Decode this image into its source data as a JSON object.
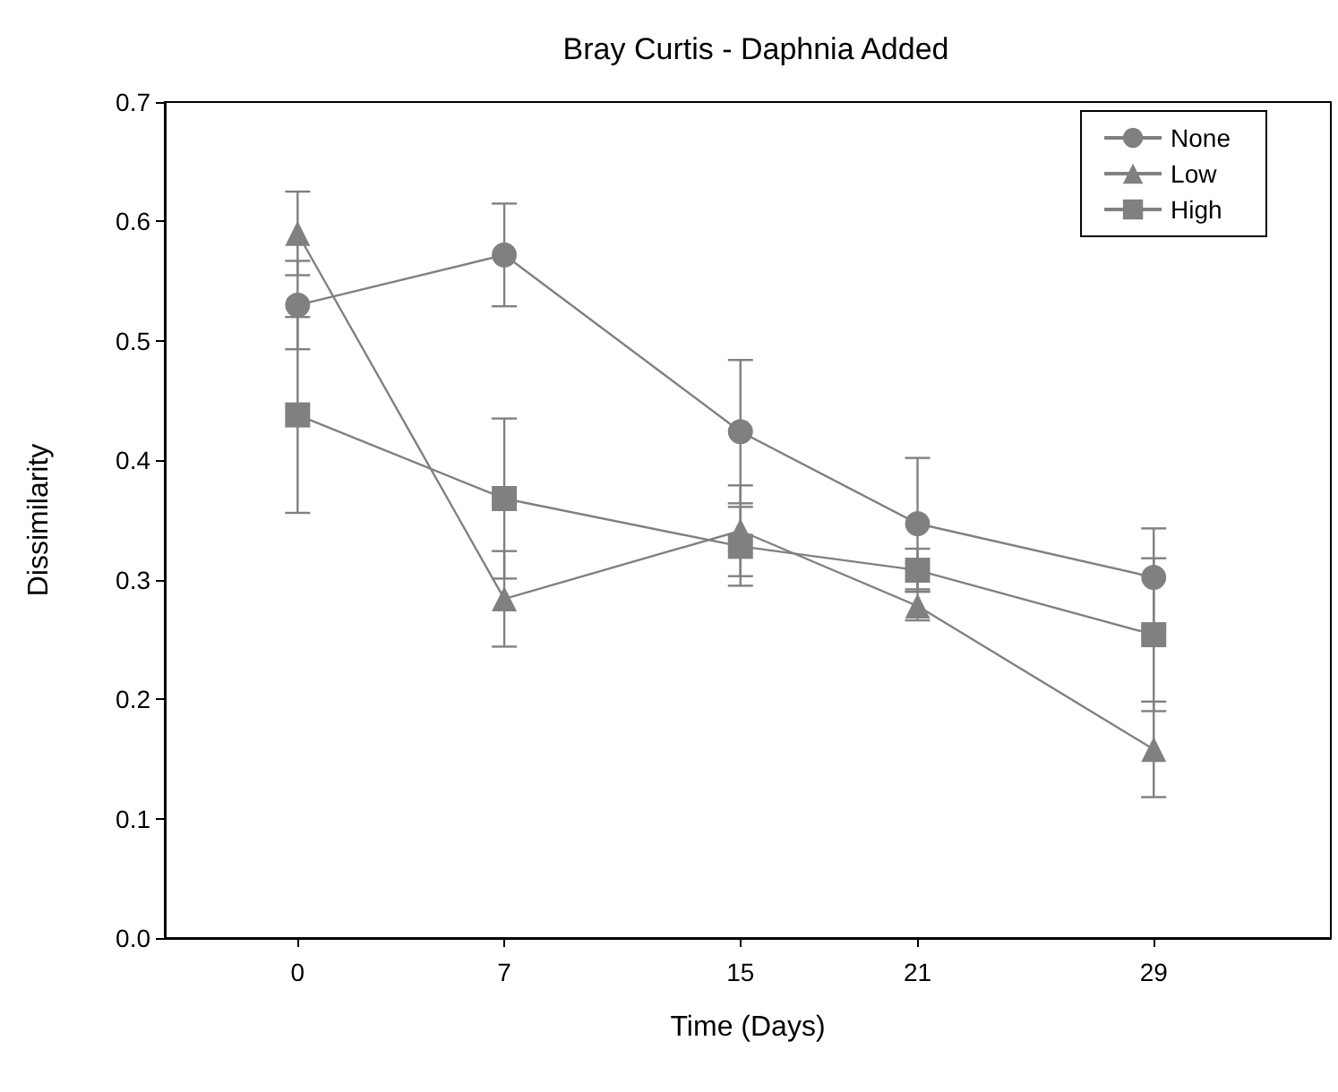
{
  "chart_data": {
    "type": "line",
    "title": "Bray Curtis - Daphnia Added",
    "xlabel": "Time (Days)",
    "ylabel": "Dissimilarity",
    "x": [
      0,
      7,
      15,
      21,
      29
    ],
    "xlim": [
      -4.5,
      35
    ],
    "xticks": [
      0,
      7,
      15,
      21,
      29
    ],
    "ylim": [
      0,
      0.7
    ],
    "yticks": [
      {
        "value": 0,
        "label": "0.0"
      },
      {
        "value": 0.1,
        "label": "0.1"
      },
      {
        "value": 0.2,
        "label": "0.2"
      },
      {
        "value": 0.3,
        "label": "0.3"
      },
      {
        "value": 0.4,
        "label": "0.4"
      },
      {
        "value": 0.5,
        "label": "0.5"
      },
      {
        "value": 0.6,
        "label": "0.6"
      },
      {
        "value": 0.7,
        "label": "0.7"
      }
    ],
    "grid": false,
    "legend": "top right",
    "series": [
      {
        "name": "None",
        "color": "#808080",
        "marker": "circle",
        "values": [
          0.53,
          0.572,
          0.424,
          0.347,
          0.302
        ],
        "errors": [
          0.037,
          0.043,
          0.06,
          0.055,
          0.041
        ]
      },
      {
        "name": "Low",
        "color": "#808080",
        "marker": "triangle",
        "values": [
          0.59,
          0.284,
          0.341,
          0.278,
          0.158
        ],
        "errors": [
          0.035,
          0.04,
          0.038,
          0.012,
          0.04
        ]
      },
      {
        "name": "High",
        "color": "#808080",
        "marker": "square",
        "values": [
          0.438,
          0.368,
          0.328,
          0.308,
          0.254
        ],
        "errors": [
          0.082,
          0.067,
          0.033,
          0.018,
          0.064
        ]
      }
    ]
  }
}
